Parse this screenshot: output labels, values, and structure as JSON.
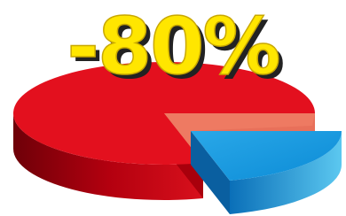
{
  "headline": "-80%"
}
